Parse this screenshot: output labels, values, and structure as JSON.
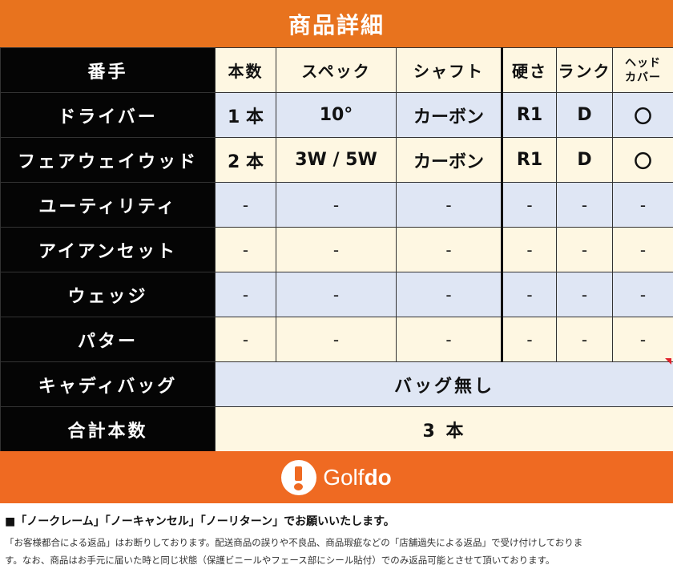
{
  "title": "商品詳細",
  "columns": [
    "番手",
    "本数",
    "スペック",
    "シャフト",
    "硬さ",
    "ランク",
    "ヘッド\nカバー"
  ],
  "rows": [
    {
      "label": "ドライバー",
      "values": [
        "1 本",
        "10°",
        "カーボン",
        "R1",
        "D",
        "〇"
      ]
    },
    {
      "label": "フェアウェイウッド",
      "values": [
        "2 本",
        "3W / 5W",
        "カーボン",
        "R1",
        "D",
        "〇"
      ]
    },
    {
      "label": "ユーティリティ",
      "values": [
        "-",
        "-",
        "-",
        "-",
        "-",
        "-"
      ]
    },
    {
      "label": "アイアンセット",
      "values": [
        "-",
        "-",
        "-",
        "-",
        "-",
        "-"
      ]
    },
    {
      "label": "ウェッジ",
      "values": [
        "-",
        "-",
        "-",
        "-",
        "-",
        "-"
      ]
    },
    {
      "label": "パター",
      "values": [
        "-",
        "-",
        "-",
        "-",
        "-",
        "-"
      ]
    }
  ],
  "caddie_bag": {
    "label": "キャディバッグ",
    "value": "バッグ無し"
  },
  "total": {
    "label": "合計本数",
    "value": "3 本"
  },
  "logo": {
    "prefix": "Golf",
    "suffix": "do"
  },
  "notes": {
    "headline": "■「ノークレーム」「ノーキャンセル」「ノーリターン」でお願いいたします。",
    "line1": "「お客様都合による返品」はお断りしております。配送商品の誤りや不良品、商品瑕疵などの「店舗過失による返品」で受け付けしておりま",
    "line2": "す。なお、商品はお手元に届いた時と同じ状態（保護ビニールやフェース部にシール貼付）でのみ返品可能とさせて頂いております。"
  },
  "colors": {
    "accent": "#e8731e",
    "logo_bg": "#ef6a22",
    "cream": "#fef7e2",
    "blue": "#dfe6f4",
    "header_black": "#050505"
  }
}
